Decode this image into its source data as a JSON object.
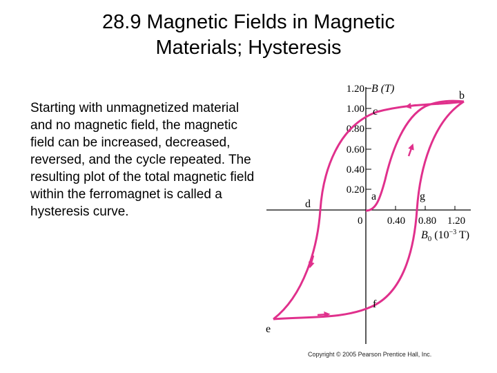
{
  "slide": {
    "title_line1": "28.9 Magnetic Fields in Magnetic",
    "title_line2": "Materials; Hysteresis",
    "body": "Starting with unmagnetized material and no magnetic field, the magnetic field can be increased, decreased, reversed, and the cycle repeated. The resulting plot of the total magnetic field within the ferromagnet is called a hysteresis curve.",
    "copyright": "Copyright © 2005 Pearson Prentice Hall, Inc."
  },
  "figure": {
    "curve_color": "#e0308c",
    "axis_color": "#000000",
    "y_axis_label": "B (T)",
    "x_axis_label_main": "B",
    "x_axis_label_sub": "0",
    "x_axis_label_unit": "(10",
    "x_axis_label_exp": "−3",
    "x_axis_label_end": " T)",
    "origin_label": "0",
    "y_ticks": [
      "1.20",
      "1.00",
      "0.80",
      "0.60",
      "0.40",
      "0.20"
    ],
    "x_ticks": [
      "0.40",
      "0.80",
      "1.20"
    ],
    "point_labels": {
      "a": "a",
      "b": "b",
      "c": "c",
      "d": "d",
      "e": "e",
      "f": "f",
      "g": "g"
    }
  }
}
